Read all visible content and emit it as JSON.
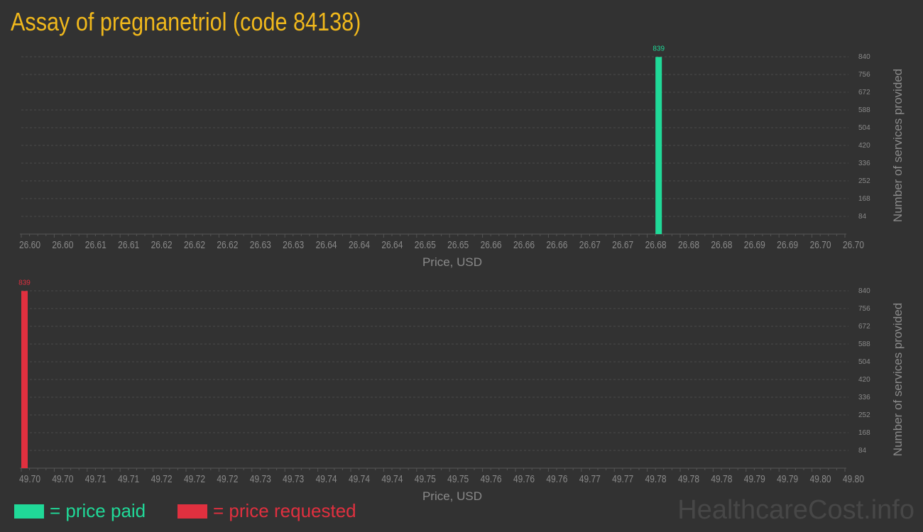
{
  "title": "Assay of pregnanetriol (code 84138)",
  "colors": {
    "paid": "#20d998",
    "requested": "#e0303f",
    "title": "#f0b81c"
  },
  "legend": {
    "paid": "= price paid",
    "requested": "= price requested"
  },
  "watermark": "HealthcareCost.info",
  "chart_data": [
    {
      "type": "bar",
      "xlabel": "Price, USD",
      "ylabel": "Number of services provided",
      "ylim": [
        0,
        840
      ],
      "yticks": [
        84,
        168,
        252,
        336,
        420,
        504,
        588,
        672,
        756,
        840
      ],
      "xlim": [
        26.6,
        26.7
      ],
      "xtick_labels": [
        "26.60",
        "26.60",
        "26.61",
        "26.61",
        "26.62",
        "26.62",
        "26.62",
        "26.63",
        "26.63",
        "26.64",
        "26.64",
        "26.64",
        "26.65",
        "26.65",
        "26.66",
        "26.66",
        "26.66",
        "26.67",
        "26.67",
        "26.68",
        "26.68",
        "26.68",
        "26.69",
        "26.69",
        "26.70",
        "26.70"
      ],
      "bars": [
        {
          "x": 26.677,
          "value": 839,
          "label": "839"
        }
      ],
      "series_color": "#20d998",
      "grid": true
    },
    {
      "type": "bar",
      "xlabel": "Price, USD",
      "ylabel": "Number of services provided",
      "ylim": [
        0,
        840
      ],
      "yticks": [
        84,
        168,
        252,
        336,
        420,
        504,
        588,
        672,
        756,
        840
      ],
      "xlim": [
        49.7,
        49.8
      ],
      "xtick_labels": [
        "49.70",
        "49.70",
        "49.71",
        "49.71",
        "49.72",
        "49.72",
        "49.72",
        "49.73",
        "49.73",
        "49.74",
        "49.74",
        "49.74",
        "49.75",
        "49.75",
        "49.76",
        "49.76",
        "49.76",
        "49.77",
        "49.77",
        "49.78",
        "49.78",
        "49.78",
        "49.79",
        "49.79",
        "49.80",
        "49.80"
      ],
      "bars": [
        {
          "x": 49.7,
          "value": 839,
          "label": "839"
        }
      ],
      "series_color": "#e0303f",
      "grid": true
    }
  ]
}
